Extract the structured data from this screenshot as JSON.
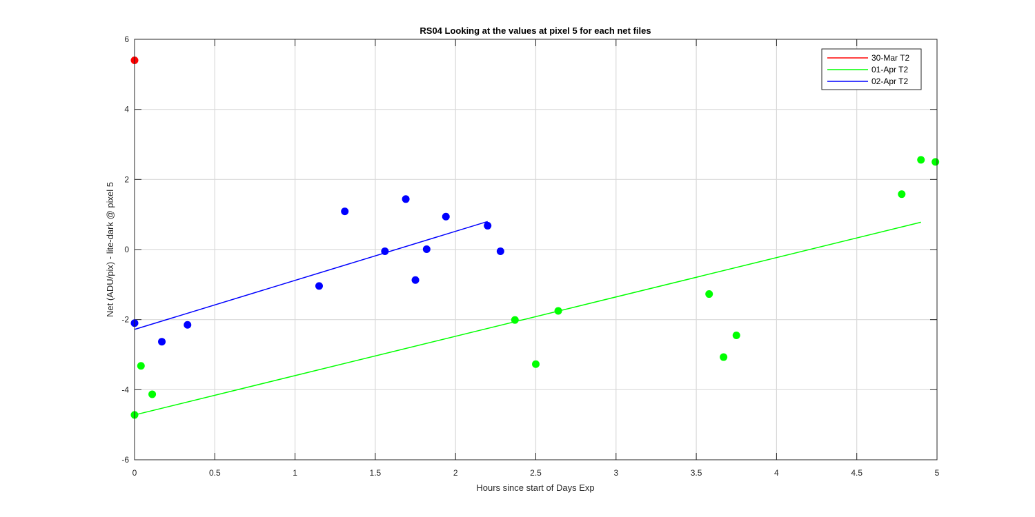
{
  "chart_data": {
    "type": "scatter",
    "title": "RS04  Looking at the values at pixel 5 for each net files",
    "xlabel": "Hours since start of Days Exp",
    "ylabel": "Net (ADU/pix) - lite-dark @ pixel 5",
    "xlim": [
      0,
      5
    ],
    "ylim": [
      -6,
      6
    ],
    "x_ticks": [
      0,
      0.5,
      1,
      1.5,
      2,
      2.5,
      3,
      3.5,
      4,
      4.5,
      5
    ],
    "x_tick_labels": [
      "0",
      "0.5",
      "1",
      "1.5",
      "2",
      "2.5",
      "3",
      "3.5",
      "4",
      "4.5",
      "5"
    ],
    "y_ticks": [
      -6,
      -4,
      -2,
      0,
      2,
      4,
      6
    ],
    "y_tick_labels": [
      "-6",
      "-4",
      "-2",
      "0",
      "2",
      "4",
      "6"
    ],
    "grid": true,
    "legend_position": "top-right",
    "series": [
      {
        "name": "30-Mar T2",
        "color": "#ff0000",
        "x": [
          0.0
        ],
        "y": [
          5.4
        ],
        "fit_line": null
      },
      {
        "name": "01-Apr T2",
        "color": "#00ff00",
        "x": [
          0.0,
          0.04,
          0.11,
          2.37,
          2.5,
          2.64,
          3.58,
          3.67,
          3.75,
          4.78,
          4.9,
          4.99
        ],
        "y": [
          -4.72,
          -3.32,
          -4.13,
          -2.01,
          -3.27,
          -1.75,
          -1.27,
          -3.07,
          -2.45,
          1.58,
          2.56,
          2.5
        ],
        "fit_line": {
          "x": [
            0.0,
            4.9
          ],
          "y": [
            -4.72,
            0.78
          ]
        }
      },
      {
        "name": "02-Apr T2",
        "color": "#0000ff",
        "x": [
          0.0,
          0.17,
          0.33,
          1.15,
          1.31,
          1.56,
          1.69,
          1.75,
          1.82,
          1.94,
          2.2,
          2.28
        ],
        "y": [
          -2.1,
          -2.63,
          -2.15,
          -1.04,
          1.09,
          -0.05,
          1.44,
          -0.87,
          0.01,
          0.94,
          0.68,
          -0.05
        ],
        "fit_line": {
          "x": [
            0.0,
            2.2
          ],
          "y": [
            -2.28,
            0.8
          ]
        }
      }
    ]
  }
}
